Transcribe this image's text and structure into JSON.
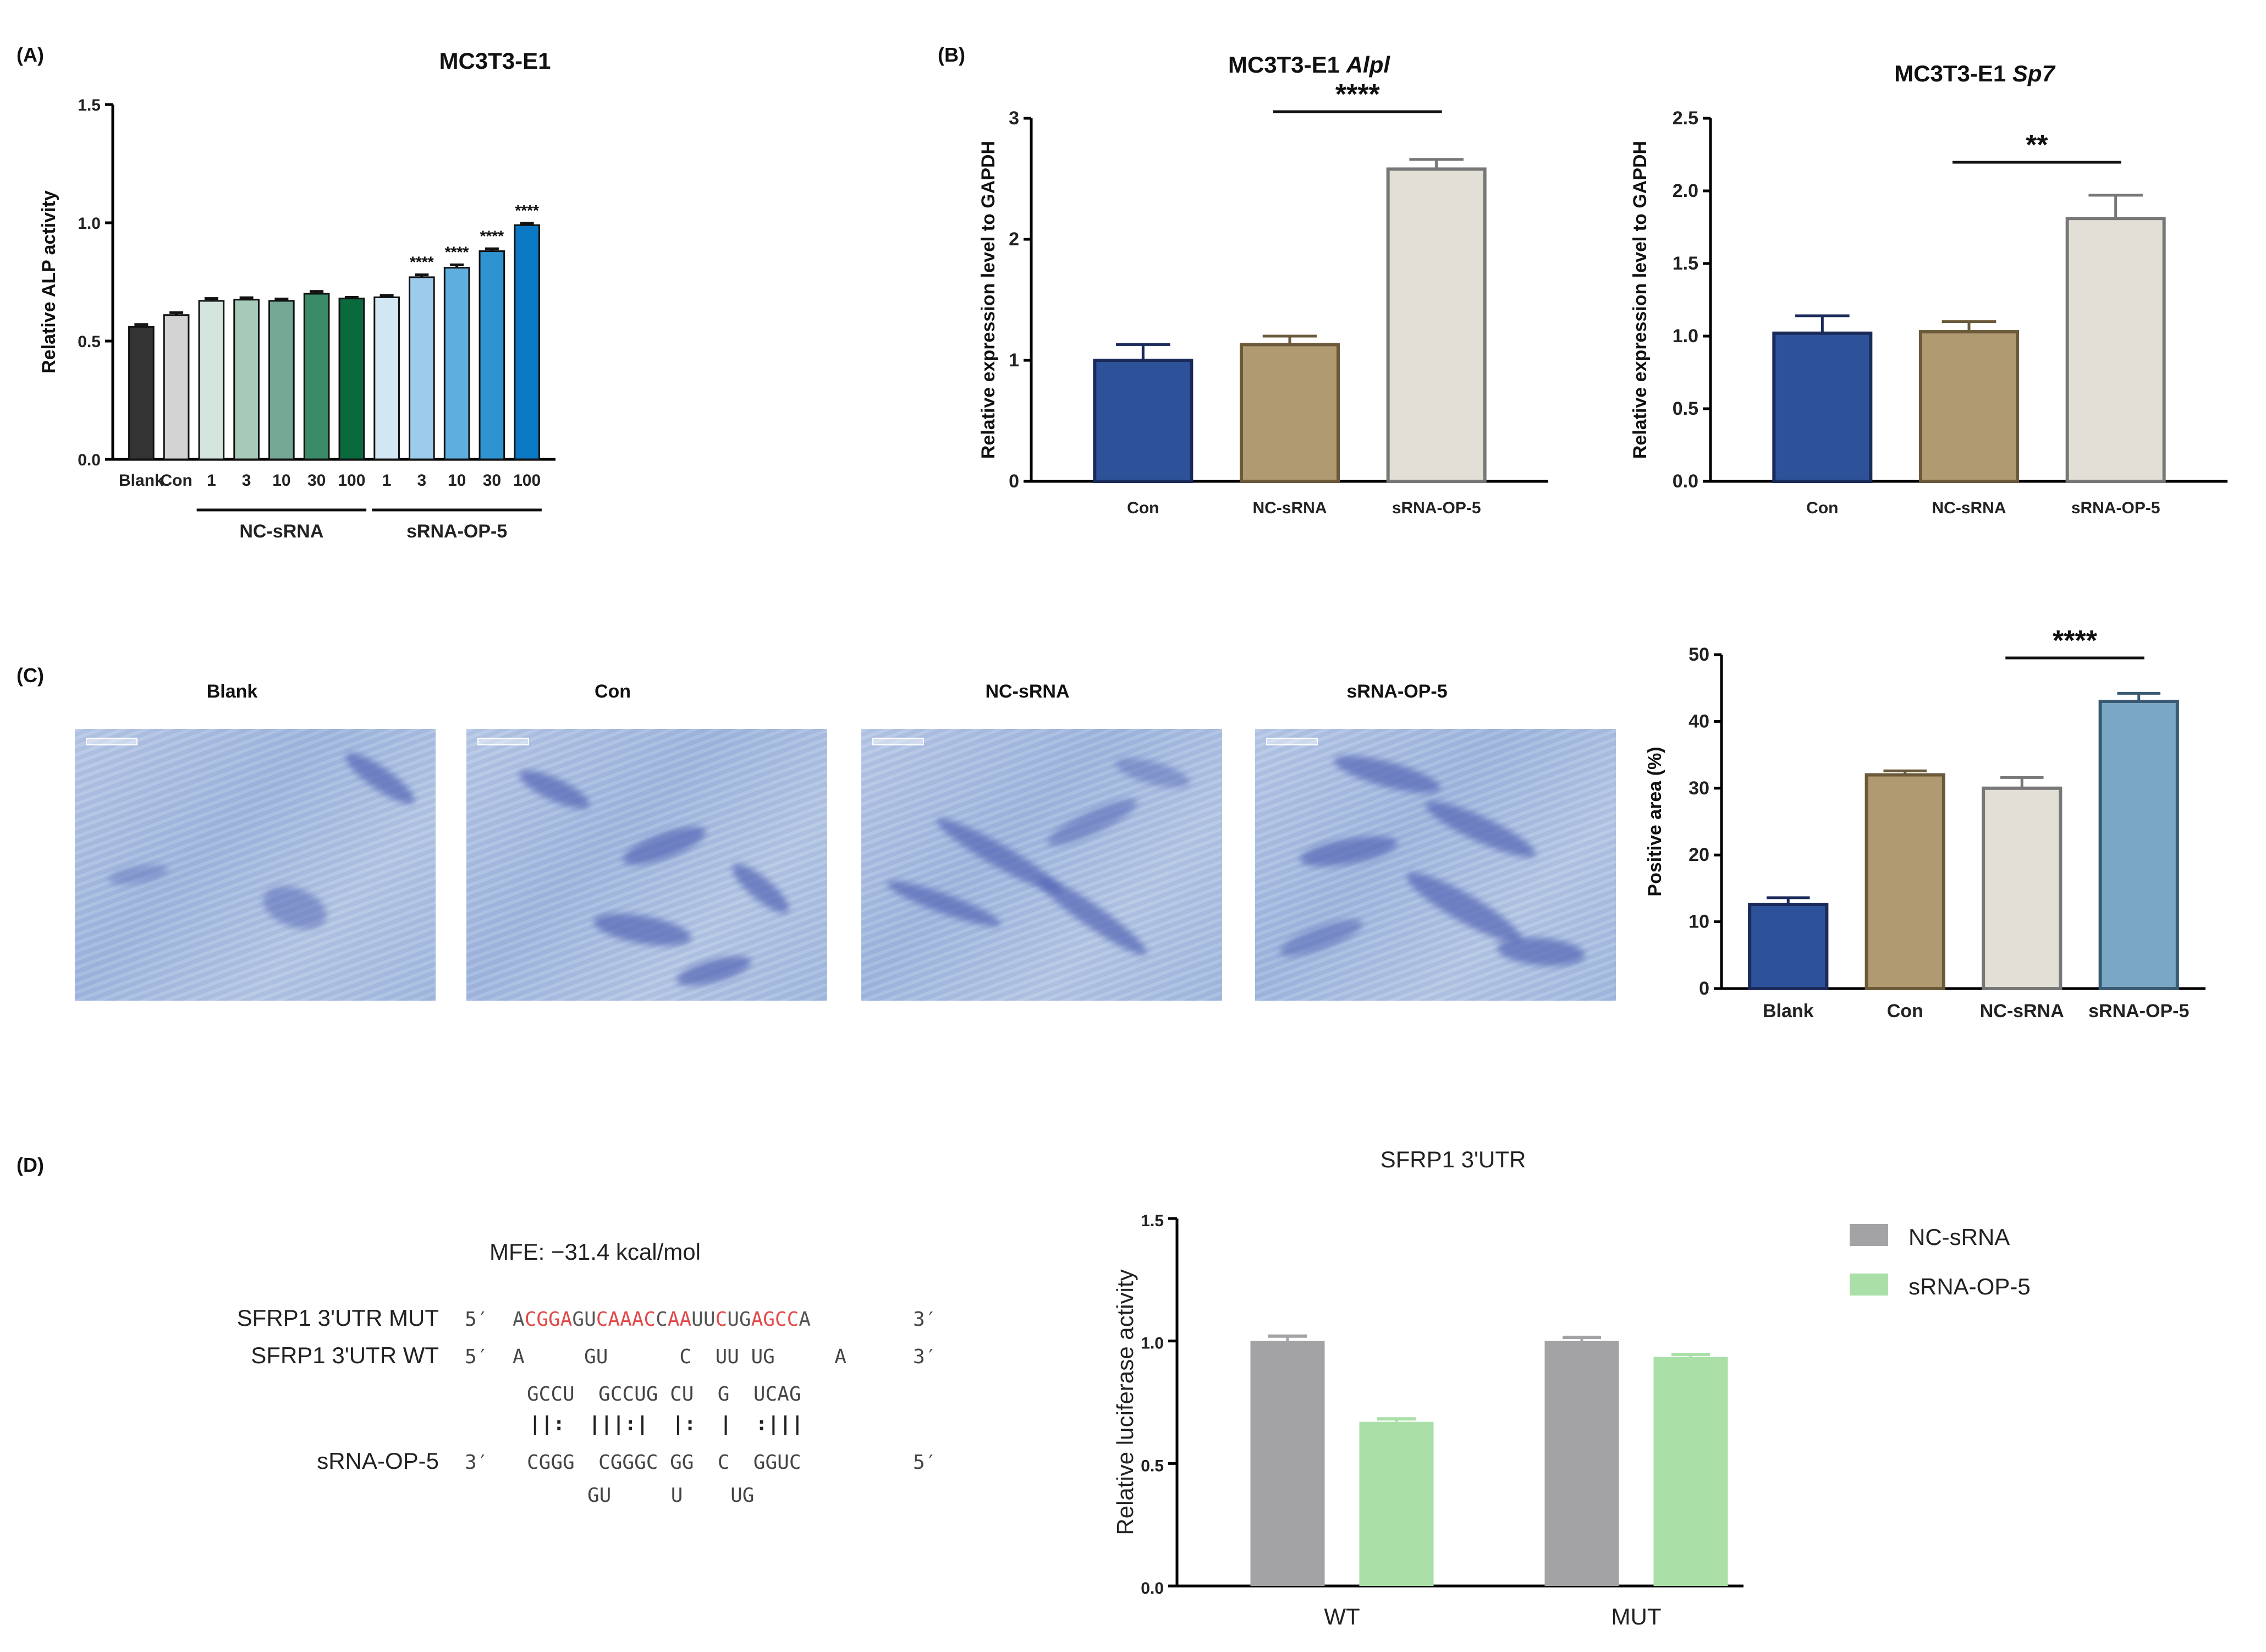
{
  "panels": {
    "a": "(A)",
    "b": "(B)",
    "c": "(C)",
    "d": "(D)"
  },
  "colors": {
    "axis": "#000000",
    "stain": "#5a6bb8"
  },
  "chart_data": [
    {
      "id": "A",
      "type": "bar",
      "title": "MC3T3-E1",
      "ylabel": "Relative ALP activity",
      "ylim": [
        0,
        1.5
      ],
      "yticks": [
        "0.0",
        "0.5",
        "1.0",
        "1.5"
      ],
      "categories": [
        "Blank",
        "Con",
        "1",
        "3",
        "10",
        "30",
        "100",
        "1",
        "3",
        "10",
        "30",
        "100"
      ],
      "values": [
        0.56,
        0.61,
        0.67,
        0.675,
        0.67,
        0.7,
        0.68,
        0.685,
        0.77,
        0.81,
        0.88,
        0.99
      ],
      "errors": [
        0.01,
        0.01,
        0.01,
        0.008,
        0.008,
        0.01,
        0.005,
        0.008,
        0.01,
        0.012,
        0.01,
        0.008
      ],
      "colors": [
        "#333333",
        "#d3d3d3",
        "#d3e4dc",
        "#a6c9b8",
        "#74a895",
        "#3b8a68",
        "#0a6a3e",
        "#d3e6f4",
        "#9dcbeb",
        "#5eaedf",
        "#2e93d1",
        "#0a78c2"
      ],
      "significance": [
        "",
        "",
        "",
        "",
        "",
        "",
        "",
        "",
        "****",
        "****",
        "****",
        "****"
      ],
      "groups": [
        {
          "label": "NC-sRNA",
          "from": 2,
          "to": 6
        },
        {
          "label": "sRNA-OP-5",
          "from": 7,
          "to": 11
        }
      ]
    },
    {
      "id": "B1",
      "type": "bar",
      "title_main": "MC3T3-E1 ",
      "title_gene": "Alpl",
      "ylabel": "Relative expression level to GAPDH",
      "ylim": [
        0,
        3
      ],
      "yticks": [
        "0",
        "1",
        "2",
        "3"
      ],
      "categories": [
        "Con",
        "NC-sRNA",
        "sRNA-OP-5"
      ],
      "values": [
        1.0,
        1.13,
        2.58
      ],
      "errors": [
        0.13,
        0.07,
        0.08
      ],
      "colors": [
        "#2e5299",
        "#b09a72",
        "#e2dfd7"
      ],
      "edge": [
        "#1a2a5a",
        "#6b5a3a",
        "#777777"
      ],
      "bracket": {
        "from": 1,
        "to": 2,
        "label": "****"
      }
    },
    {
      "id": "B2",
      "type": "bar",
      "title_main": "MC3T3-E1 ",
      "title_gene": "Sp7",
      "ylabel": "Relative expression level to GAPDH",
      "ylim": [
        0,
        2.5
      ],
      "yticks": [
        "0.0",
        "0.5",
        "1.0",
        "1.5",
        "2.0",
        "2.5"
      ],
      "categories": [
        "Con",
        "NC-sRNA",
        "sRNA-OP-5"
      ],
      "values": [
        1.02,
        1.03,
        1.81
      ],
      "errors": [
        0.12,
        0.07,
        0.16
      ],
      "colors": [
        "#2e5299",
        "#b09a72",
        "#e2dfd7"
      ],
      "edge": [
        "#1a2a5a",
        "#6b5a3a",
        "#777777"
      ],
      "bracket": {
        "from": 1,
        "to": 2,
        "label": "**"
      }
    },
    {
      "id": "C",
      "type": "bar",
      "ylabel": "Positive area (%)",
      "ylim": [
        0,
        50
      ],
      "yticks": [
        "0",
        "10",
        "20",
        "30",
        "40",
        "50"
      ],
      "categories": [
        "Blank",
        "Con",
        "NC-sRNA",
        "sRNA-OP-5"
      ],
      "values": [
        12.6,
        32.0,
        30.0,
        43.0
      ],
      "errors": [
        1.0,
        0.6,
        1.6,
        1.2
      ],
      "colors": [
        "#2e5299",
        "#b09a72",
        "#e2dfd7",
        "#7ba7c6"
      ],
      "edge": [
        "#1a2a5a",
        "#6b5a3a",
        "#777777",
        "#3a5a72"
      ],
      "bracket": {
        "from": 2,
        "to": 3,
        "label": "****"
      }
    },
    {
      "id": "D",
      "type": "bar",
      "title": "SFRP1 3'UTR",
      "ylabel": "Relative luciferase activity",
      "ylim": [
        0,
        1.5
      ],
      "yticks": [
        "0.0",
        "0.5",
        "1.0",
        "1.5"
      ],
      "categories": [
        "WT",
        "MUT"
      ],
      "series": [
        {
          "name": "NC-sRNA",
          "values": [
            1.0,
            1.0
          ],
          "errors": [
            0.02,
            0.015
          ],
          "color": "#a3a3a6"
        },
        {
          "name": "sRNA-OP-5",
          "values": [
            0.67,
            0.935
          ],
          "errors": [
            0.012,
            0.01
          ],
          "color": "#aadfa8"
        }
      ]
    }
  ],
  "stain": {
    "images": [
      "Blank",
      "Con",
      "NC-sRNA",
      "sRNA-OP-5"
    ]
  },
  "binding": {
    "mfe": "MFE: −31.4 kcal/mol",
    "mut_label": "SFRP1 3'UTR MUT",
    "wt_label": "SFRP1 3'UTR WT",
    "srna_label": "sRNA-OP-5",
    "p5": "5′",
    "p3": "3′",
    "mut_segments": [
      [
        "A",
        "#555555"
      ],
      [
        "CGGA",
        "#e04a4a"
      ],
      [
        "GU",
        "#555555"
      ],
      [
        "CAAAC",
        "#e04a4a"
      ],
      [
        "C",
        "#555555"
      ],
      [
        "AA",
        "#e04a4a"
      ],
      [
        "UU",
        "#555555"
      ],
      [
        "C",
        "#e04a4a"
      ],
      [
        "UG",
        "#555555"
      ],
      [
        "AGCC",
        "#e04a4a"
      ],
      [
        "A",
        "#555555"
      ]
    ],
    "wt_line": "A     GU      C  UU UG     A",
    "top_pair": "GCCU  GCCUG CU  G  UCAG",
    "bars_line": "||:  |||:|  |:  |  :|||",
    "srna_line": "CGGG  CGGGC GG  C  GGUC",
    "bottom_line": "GU     U    UG"
  }
}
